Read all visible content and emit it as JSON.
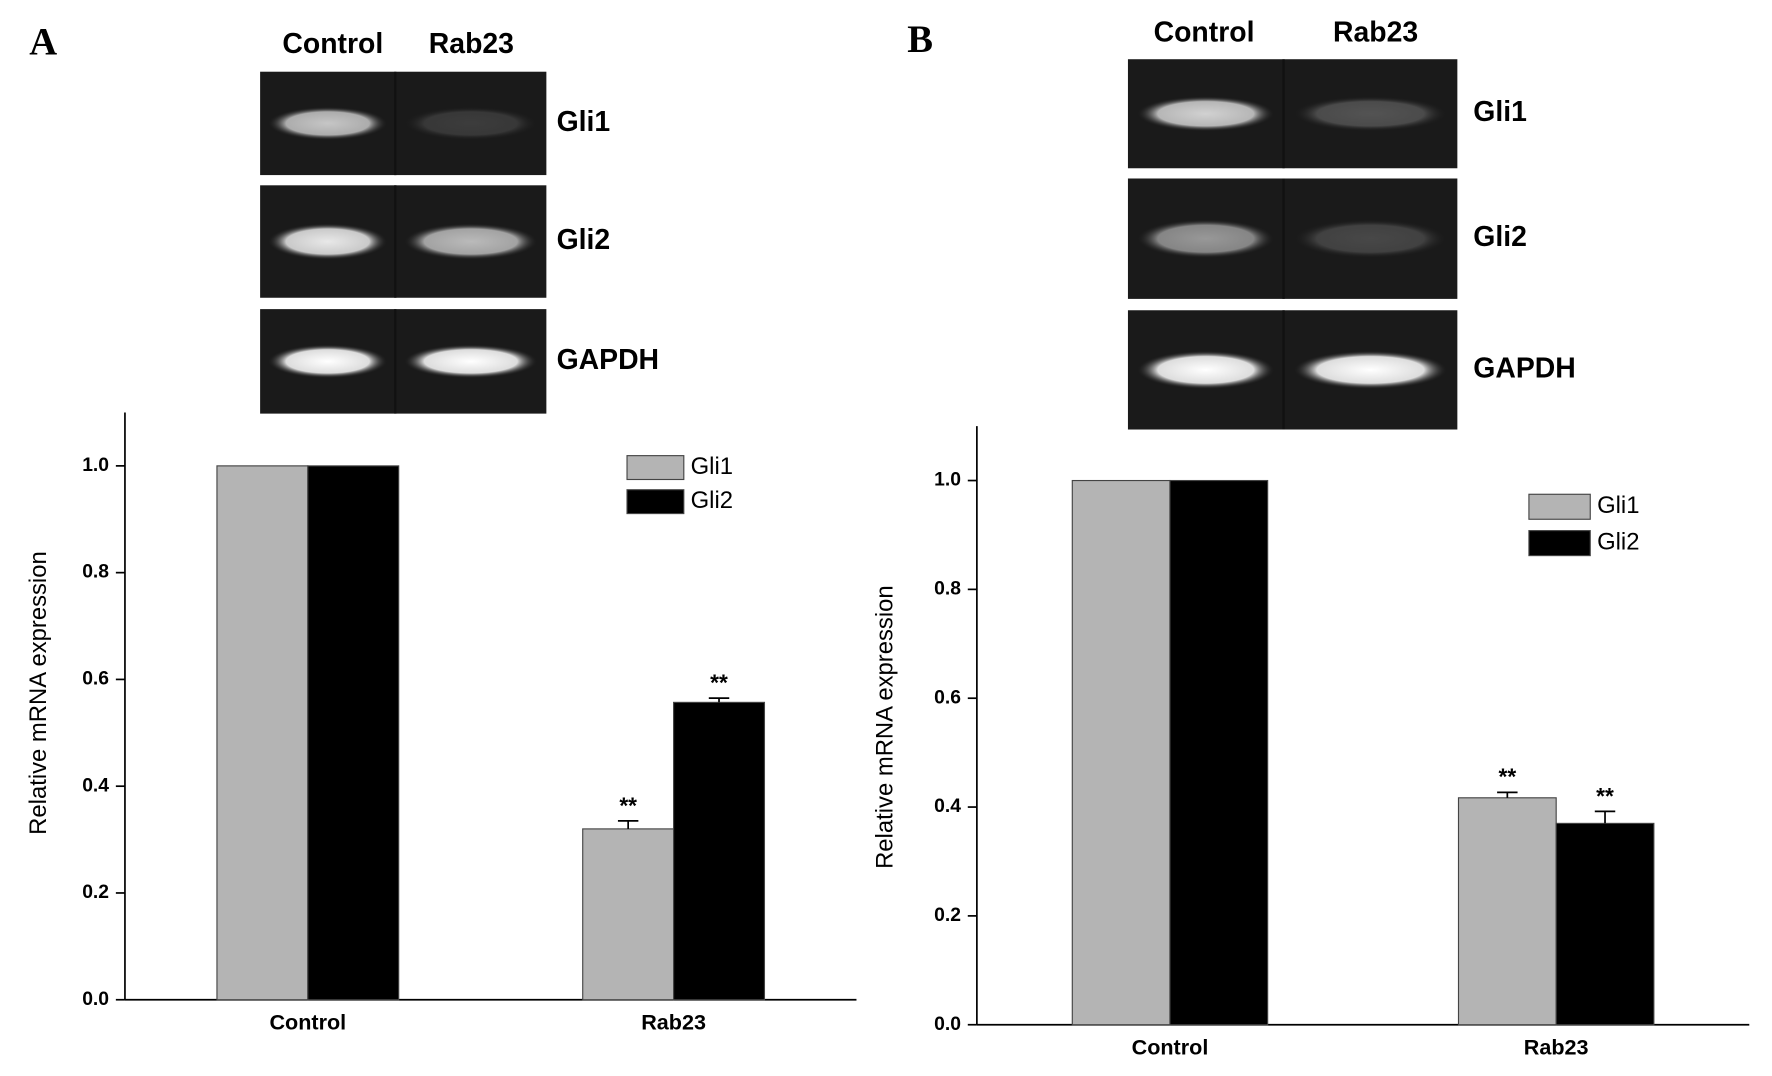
{
  "chart_data": [
    {
      "type": "bar",
      "panel": "A",
      "gel": {
        "lanes": [
          "Control",
          "Rab23"
        ],
        "bands": [
          "Gli1",
          "Gli2",
          "GAPDH"
        ]
      },
      "y_label": "Relative mRNA expression",
      "categories": [
        "Control",
        "Rab23"
      ],
      "series": [
        {
          "name": "Gli1",
          "color": "#b4b4b4",
          "values": [
            1.0,
            0.32
          ],
          "errors": [
            null,
            0.015
          ],
          "significance": [
            null,
            "**"
          ]
        },
        {
          "name": "Gli2",
          "color": "#000000",
          "values": [
            1.0,
            0.557
          ],
          "errors": [
            null,
            0.008
          ],
          "significance": [
            null,
            "**"
          ]
        }
      ],
      "ylim": [
        0,
        1.1
      ],
      "yticks": [
        {
          "value": 0,
          "label": "0.0"
        },
        0.2,
        0.4,
        0.6,
        0.8,
        {
          "value": 1,
          "label": "1.0"
        }
      ]
    },
    {
      "type": "bar",
      "panel": "B",
      "gel": {
        "lanes": [
          "Control",
          "Rab23"
        ],
        "bands": [
          "Gli1",
          "Gli2",
          "GAPDH"
        ]
      },
      "y_label": "Relative mRNA expression",
      "categories": [
        "Control",
        "Rab23"
      ],
      "series": [
        {
          "name": "Gli1",
          "color": "#b4b4b4",
          "values": [
            1.0,
            0.417
          ],
          "errors": [
            null,
            0.01
          ],
          "significance": [
            null,
            "**"
          ]
        },
        {
          "name": "Gli2",
          "color": "#000000",
          "values": [
            1.0,
            0.37
          ],
          "errors": [
            null,
            0.022
          ],
          "significance": [
            null,
            "**"
          ]
        }
      ],
      "ylim": [
        0,
        1.1
      ],
      "yticks": [
        {
          "value": 0,
          "label": "0.0"
        },
        0.2,
        0.4,
        0.6,
        0.8,
        {
          "value": 1,
          "label": "1.0"
        }
      ]
    }
  ]
}
